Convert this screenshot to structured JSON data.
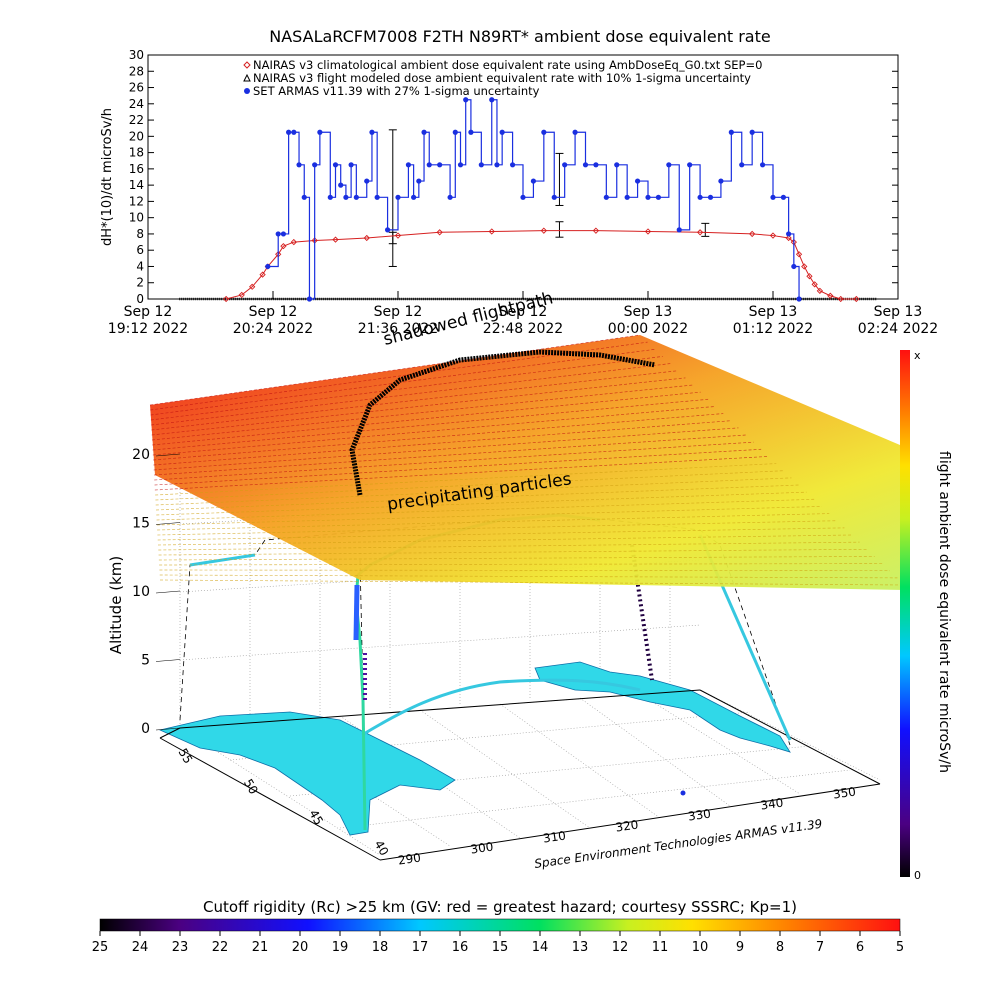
{
  "chart_data": [
    {
      "type": "line",
      "title": "NASALaRCFM7008  F2TH N89RT* ambient dose equivalent rate",
      "ylabel": "dH*(10)/dt microSv/h",
      "ylim": [
        0,
        30
      ],
      "yticks": [
        0,
        2,
        4,
        6,
        8,
        10,
        12,
        14,
        16,
        18,
        20,
        22,
        24,
        26,
        28,
        30
      ],
      "xlim_hours": [
        19.2,
        26.4
      ],
      "xticks": [
        {
          "h": 19.2,
          "line1": "Sep 12",
          "line2": "19:12 2022"
        },
        {
          "h": 20.4,
          "line1": "Sep 12",
          "line2": "20:24 2022"
        },
        {
          "h": 21.6,
          "line1": "Sep 12",
          "line2": "21:36 2022"
        },
        {
          "h": 22.8,
          "line1": "Sep 12",
          "line2": "22:48 2022"
        },
        {
          "h": 24.0,
          "line1": "Sep 13",
          "line2": "00:00 2022"
        },
        {
          "h": 25.2,
          "line1": "Sep 13",
          "line2": "01:12 2022"
        },
        {
          "h": 26.4,
          "line1": "Sep 13",
          "line2": "02:24 2022"
        }
      ],
      "legend": [
        {
          "label": "NAIRAS v3 climatological ambient dose equivalent rate using AmbDoseEq_G0.txt SEP=0",
          "color": "#d62020",
          "marker": "diamond"
        },
        {
          "label": "NAIRAS v3 flight modeled dose ambient equivalent rate with 10% 1-sigma uncertainty",
          "color": "#000000",
          "marker": "triangle"
        },
        {
          "label": "SET ARMAS v11.39 with 27% 1-sigma uncertainty",
          "color": "#1a2fe0",
          "marker": "dot"
        }
      ],
      "legend_placement": "top",
      "series": [
        {
          "name": "NAIRAS v3 climatological ambient dose equivalent rate using AmbDoseEq_G0.txt SEP=0",
          "color": "#d62020",
          "x": [
            19.95,
            20.1,
            20.2,
            20.3,
            20.35,
            20.45,
            20.5,
            20.6,
            20.8,
            21.0,
            21.3,
            21.6,
            22.0,
            22.5,
            23.0,
            23.5,
            24.0,
            24.5,
            25.0,
            25.2,
            25.35,
            25.4,
            25.45,
            25.5,
            25.55,
            25.6,
            25.65,
            25.75,
            25.85,
            26.0
          ],
          "y": [
            0,
            0.5,
            1.5,
            3.0,
            4.0,
            5.5,
            6.5,
            7.0,
            7.2,
            7.3,
            7.5,
            7.8,
            8.2,
            8.3,
            8.4,
            8.4,
            8.3,
            8.2,
            8.0,
            7.8,
            7.5,
            7.0,
            5.5,
            4.0,
            2.8,
            1.8,
            1.0,
            0.4,
            0,
            0
          ]
        },
        {
          "name": "NAIRAS v3 flight modeled dose ambient equivalent rate with 10% 1-sigma uncertainty",
          "color": "#000000",
          "x": [
            19.5,
            26.2
          ],
          "y": [
            0,
            0
          ],
          "error_points": [
            {
              "x": 21.55,
              "y": 7.5,
              "lo": 6.8,
              "hi": 8.2
            },
            {
              "x": 21.55,
              "y": 12.5,
              "lo": 4.0,
              "hi": 20.8
            },
            {
              "x": 23.15,
              "y": 16.0,
              "lo": 11.5,
              "hi": 17.9
            },
            {
              "x": 23.15,
              "y": 8.5,
              "lo": 7.6,
              "hi": 9.5
            },
            {
              "x": 24.55,
              "y": 8.5,
              "lo": 7.7,
              "hi": 9.3
            }
          ]
        },
        {
          "name": "SET ARMAS v11.39 with 27% 1-sigma uncertainty",
          "color": "#1a2fe0",
          "x": [
            20.35,
            20.45,
            20.5,
            20.55,
            20.6,
            20.65,
            20.7,
            20.75,
            20.8,
            20.85,
            20.95,
            21.0,
            21.05,
            21.1,
            21.15,
            21.2,
            21.3,
            21.35,
            21.4,
            21.5,
            21.6,
            21.7,
            21.75,
            21.8,
            21.85,
            21.9,
            22.0,
            22.1,
            22.15,
            22.2,
            22.25,
            22.3,
            22.4,
            22.5,
            22.55,
            22.6,
            22.7,
            22.8,
            22.9,
            23.0,
            23.1,
            23.2,
            23.3,
            23.4,
            23.5,
            23.6,
            23.7,
            23.8,
            23.9,
            24.0,
            24.1,
            24.2,
            24.3,
            24.4,
            24.5,
            24.6,
            24.7,
            24.8,
            24.9,
            25.0,
            25.1,
            25.2,
            25.3,
            25.35,
            25.4,
            25.45
          ],
          "y": [
            4,
            8,
            8,
            20.5,
            20.5,
            16.5,
            12.5,
            0,
            16.5,
            20.5,
            12.5,
            16.5,
            14,
            12.5,
            16.5,
            12.5,
            14.5,
            20.5,
            12.5,
            8.5,
            12.5,
            16.5,
            12.5,
            14.5,
            20.5,
            16.5,
            16.5,
            12.5,
            20.5,
            16.5,
            24.5,
            20.5,
            16.5,
            24.5,
            16.5,
            20.5,
            16.5,
            12.5,
            14.5,
            20.5,
            12.5,
            16.5,
            20.5,
            16.5,
            16.5,
            12.5,
            16.5,
            12.5,
            14.5,
            12.5,
            12.5,
            16.5,
            8.5,
            16.5,
            12.5,
            12.5,
            14.5,
            20.5,
            16.5,
            20.5,
            16.5,
            12.5,
            12.5,
            8,
            4,
            0
          ]
        }
      ]
    },
    {
      "type": "scatter",
      "title": "",
      "annotations": [
        "shadowed flightpath",
        "precipitating particles"
      ],
      "zlabel": "Altitude (km)",
      "zticks": [
        0,
        5,
        10,
        15,
        20
      ],
      "lat_ticks": [
        40,
        45,
        50,
        55
      ],
      "lon_ticks": [
        290,
        300,
        310,
        320,
        330,
        340,
        350
      ],
      "credit": "Space Environment Technologies ARMAS v11.39",
      "colorbar": {
        "label": "flight ambient dose equivalent rate microSv/h",
        "top_label": "x",
        "bottom_label": "0"
      }
    },
    {
      "type": "heatmap",
      "title": "Cutoff rigidity (Rc) >25 km (GV: red = greatest hazard; courtesy SSSRC; Kp=1)",
      "ticks": [
        25,
        24,
        23,
        22,
        21,
        20,
        19,
        18,
        17,
        16,
        15,
        14,
        13,
        12,
        11,
        10,
        9,
        8,
        7,
        6,
        5
      ],
      "colors": [
        "#000000",
        "#4b0082",
        "#1010ff",
        "#00c8ff",
        "#00e060",
        "#c8f020",
        "#ffe000",
        "#ff8000",
        "#ff1010"
      ]
    }
  ]
}
